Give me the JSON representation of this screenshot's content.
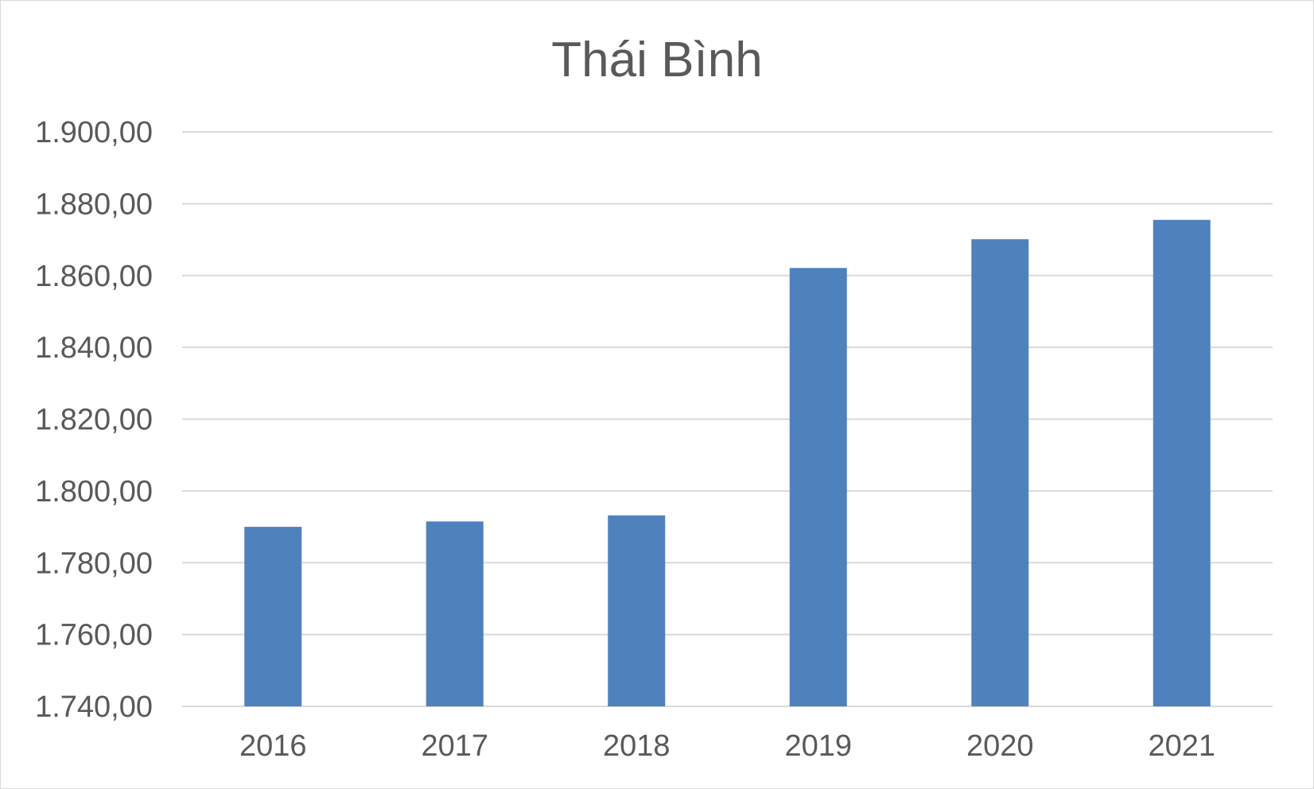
{
  "chart_data": {
    "type": "bar",
    "title": "Thái Bình",
    "categories": [
      "2016",
      "2017",
      "2018",
      "2019",
      "2020",
      "2021"
    ],
    "values": [
      1790.0,
      1791.5,
      1793.2,
      1862.1,
      1870.1,
      1875.5
    ],
    "ylim": [
      1740,
      1900
    ],
    "yticks": [
      1740,
      1760,
      1780,
      1800,
      1820,
      1840,
      1860,
      1880,
      1900
    ],
    "ytick_labels": [
      "1.740,00",
      "1.760,00",
      "1.780,00",
      "1.800,00",
      "1.820,00",
      "1.840,00",
      "1.860,00",
      "1.880,00",
      "1.900,00"
    ],
    "xlabel": "",
    "ylabel": "",
    "grid": true,
    "legend": "none",
    "bar_color": "#4f81bd"
  }
}
